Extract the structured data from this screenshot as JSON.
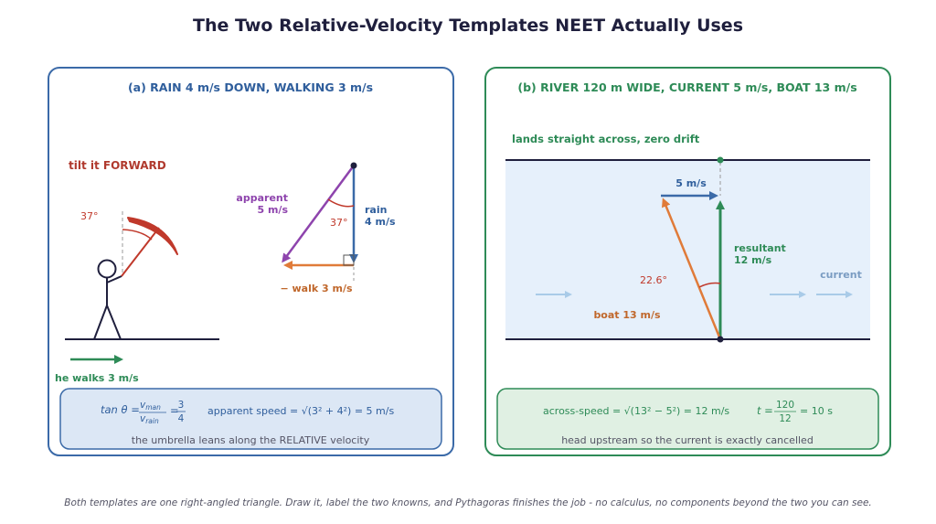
{
  "title": "The Two Relative-Velocity Templates NEET Actually Uses",
  "panel_a": {
    "heading": "(a)  RAIN 4 m/s DOWN, WALKING 3 m/s",
    "tilt_label": "tilt it FORWARD",
    "man_angle": "37°",
    "walk_label": "he walks 3 m/s",
    "apparent_line1": "apparent",
    "apparent_line2": "5 m/s",
    "rain_line1": "rain",
    "rain_line2": "4 m/s",
    "triangle_angle": "37°",
    "neg_walk_label": "− walk 3 m/s",
    "formula_tan_prefix": "tan θ = ",
    "formula_vman": "v",
    "formula_vman_sub": "man",
    "formula_vrain": "v",
    "formula_vrain_sub": "rain",
    "formula_eq_frac": "= ",
    "formula_num": "3",
    "formula_den": "4",
    "formula_apparent": "apparent speed  = √(3² + 4²) = 5 m/s",
    "note": "the umbrella leans along the RELATIVE velocity",
    "colors": {
      "border": "#3b6aa8",
      "heading": "#2f5e9c",
      "box_fill": "#dce7f5"
    }
  },
  "panel_b": {
    "heading": "(b)  RIVER 120 m WIDE, CURRENT 5 m/s, BOAT 13 m/s",
    "lands_label": "lands straight across, zero drift",
    "current_vec_label": "5 m/s",
    "resultant_line1": "resultant",
    "resultant_line2": "12 m/s",
    "angle_label": "22.6°",
    "boat_label": "boat 13 m/s",
    "current_label": "current",
    "formula_across": "across-speed  = √(13² − 5²) = 12 m/s",
    "formula_t_prefix": "t = ",
    "formula_t_num": "120",
    "formula_t_den": "12",
    "formula_t_suffix": "= 10 s",
    "note": "head upstream so the current is exactly cancelled",
    "colors": {
      "border": "#2e8b57",
      "heading": "#2e8b57",
      "box_fill": "#e0f0e3",
      "river": "#e6f0fb"
    }
  },
  "footer": "Both templates are one right-angled triangle. Draw it, label the two knowns, and Pythagoras finishes the job - no calculus, no components beyond the two you can see."
}
